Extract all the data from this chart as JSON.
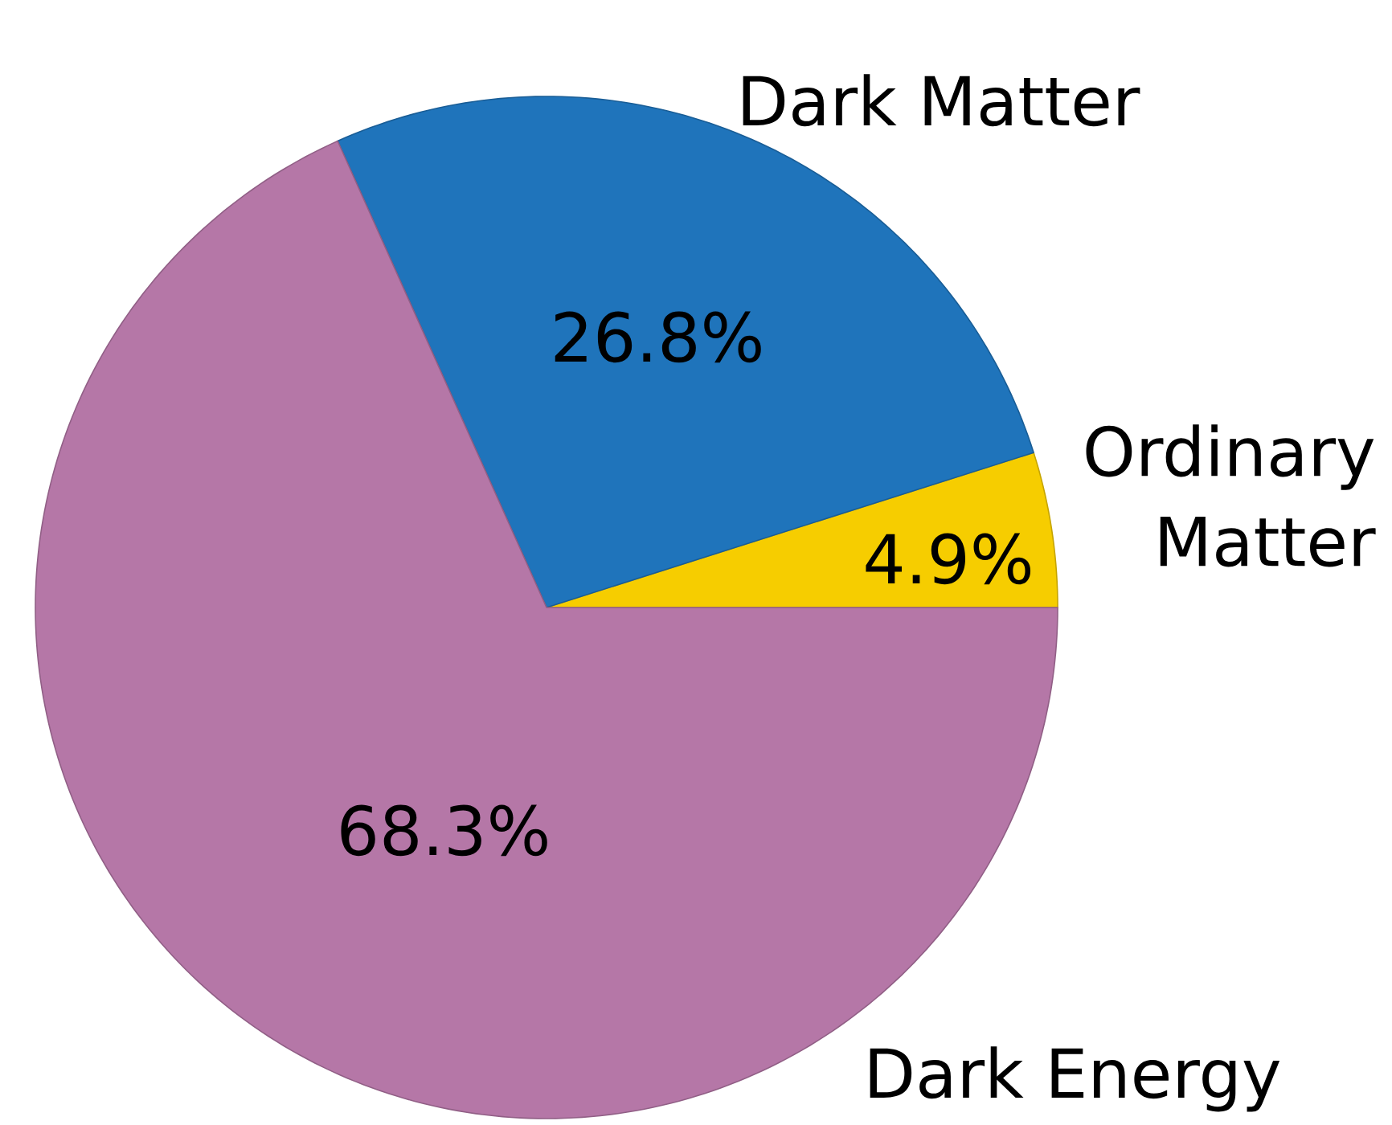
{
  "chart_data": {
    "type": "pie",
    "categories": [
      "Ordinary Matter",
      "Dark Matter",
      "Dark Energy"
    ],
    "values": [
      4.9,
      26.8,
      68.3
    ],
    "colors": [
      "#f6cd00",
      "#1f74bb",
      "#b577a7"
    ],
    "value_labels": [
      "4.9%",
      "26.8%",
      "68.3%"
    ]
  }
}
